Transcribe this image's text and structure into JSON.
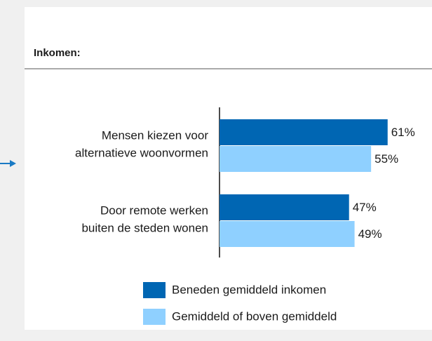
{
  "chart_data": {
    "type": "bar",
    "orientation": "horizontal",
    "title": "Inkomen:",
    "categories": [
      "Mensen kiezen voor\nalternatieve woonvormen",
      "Door remote werken\nbuiten de steden wonen"
    ],
    "series": [
      {
        "name": "Beneden gemiddeld inkomen",
        "color": "#0066b3",
        "values": [
          61,
          47
        ],
        "value_labels": [
          "61%",
          "47%"
        ]
      },
      {
        "name": "Gemiddeld of boven gemiddeld",
        "color": "#8fd0ff",
        "values": [
          55,
          49
        ],
        "value_labels": [
          "55%",
          "49%"
        ]
      }
    ]
  }
}
